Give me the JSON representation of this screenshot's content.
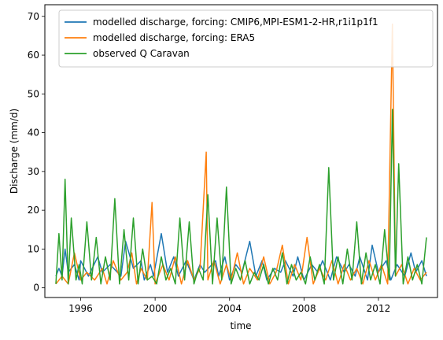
{
  "chart_data": {
    "type": "line",
    "title": "",
    "xlabel": "time",
    "ylabel": "Discharge (mm/d)",
    "xlim": [
      "1994-01-28",
      "2015-03-05"
    ],
    "ylim": [
      -2.5,
      73
    ],
    "x_ticks": [
      "1996",
      "2000",
      "2004",
      "2008",
      "2012"
    ],
    "y_ticks": [
      0,
      10,
      20,
      30,
      40,
      50,
      60,
      70
    ],
    "grid": false,
    "legend_position": "top-right",
    "series": [
      {
        "name": "modelled discharge, forcing: CMIP6,MPI-ESM1-2-HR,r1i1p1f1",
        "color": "#1f77b4",
        "x": [
          "1994-09",
          "1994-11",
          "1995-01",
          "1995-03",
          "1995-05",
          "1995-09",
          "1995-12",
          "1996-01",
          "1996-06",
          "1996-12",
          "1997-03",
          "1997-08",
          "1998-03",
          "1998-06",
          "1998-11",
          "1999-04",
          "1999-06",
          "1999-10",
          "1999-12",
          "2000-05",
          "2000-09",
          "2001-01",
          "2001-04",
          "2001-09",
          "2002-02",
          "2002-06",
          "2002-09",
          "2003-04",
          "2003-06",
          "2003-10",
          "2004-01",
          "2004-05",
          "2004-09",
          "2005-02",
          "2005-06",
          "2005-10",
          "2006-01",
          "2006-06",
          "2006-10",
          "2007-01",
          "2007-06",
          "2007-09",
          "2008-01",
          "2008-06",
          "2008-10",
          "2009-01",
          "2009-06",
          "2009-10",
          "2010-03",
          "2010-06",
          "2010-10",
          "2011-01",
          "2011-06",
          "2011-09",
          "2012-01",
          "2012-06",
          "2012-09",
          "2013-01",
          "2013-06",
          "2013-10",
          "2014-01",
          "2014-05",
          "2014-08"
        ],
        "y": [
          3,
          5,
          3,
          10,
          4,
          6,
          2,
          7,
          3,
          8,
          4,
          6,
          3,
          12,
          5,
          7,
          2,
          6,
          3,
          14,
          4,
          8,
          3,
          7,
          2,
          6,
          4,
          7,
          3,
          8,
          2,
          6,
          4,
          12,
          3,
          7,
          2,
          5,
          4,
          7,
          3,
          8,
          2,
          6,
          4,
          7,
          2,
          8,
          4,
          6,
          3,
          8,
          2,
          11,
          4,
          7,
          2,
          6,
          3,
          9,
          4,
          7,
          3
        ]
      },
      {
        "name": "modelled discharge, forcing: ERA5",
        "color": "#ff7f0e",
        "x": [
          "1994-09",
          "1995-01",
          "1995-05",
          "1995-09",
          "1996-01",
          "1996-05",
          "1996-10",
          "1997-03",
          "1997-06",
          "1997-10",
          "1998-03",
          "1998-07",
          "1998-10",
          "1999-01",
          "1999-04",
          "1999-08",
          "1999-11",
          "2000-01",
          "2000-06",
          "2000-10",
          "2001-02",
          "2001-06",
          "2001-10",
          "2002-02",
          "2002-06",
          "2002-10",
          "2002-11",
          "2003-03",
          "2003-07",
          "2003-11",
          "2004-02",
          "2004-06",
          "2004-10",
          "2005-02",
          "2005-07",
          "2005-11",
          "2006-03",
          "2006-07",
          "2006-11",
          "2007-03",
          "2007-07",
          "2007-11",
          "2008-03",
          "2008-07",
          "2008-11",
          "2009-03",
          "2009-07",
          "2009-11",
          "2010-03",
          "2010-07",
          "2010-11",
          "2011-03",
          "2011-07",
          "2011-11",
          "2012-03",
          "2012-07",
          "2012-10",
          "2012-12",
          "2013-04",
          "2013-08",
          "2013-12",
          "2014-04",
          "2014-08"
        ],
        "y": [
          1,
          3,
          1,
          9,
          2,
          4,
          2,
          5,
          1,
          7,
          2,
          4,
          9,
          1,
          5,
          2,
          22,
          1,
          6,
          2,
          8,
          1,
          7,
          2,
          5,
          35,
          2,
          7,
          1,
          6,
          2,
          9,
          1,
          5,
          2,
          8,
          1,
          4,
          11,
          1,
          6,
          2,
          13,
          1,
          5,
          2,
          7,
          1,
          6,
          2,
          5,
          1,
          7,
          2,
          6,
          1,
          68,
          3,
          6,
          1,
          5,
          2,
          4
        ]
      },
      {
        "name": "observed Q Caravan",
        "color": "#2ca02c",
        "x": [
          "1994-09",
          "1994-11",
          "1995-01",
          "1995-03",
          "1995-05",
          "1995-07",
          "1995-10",
          "1995-12",
          "1996-02",
          "1996-05",
          "1996-08",
          "1996-11",
          "1997-02",
          "1997-05",
          "1997-08",
          "1997-11",
          "1998-02",
          "1998-05",
          "1998-08",
          "1998-11",
          "1999-02",
          "1999-05",
          "1999-08",
          "1999-11",
          "2000-02",
          "2000-05",
          "2000-08",
          "2000-11",
          "2001-02",
          "2001-05",
          "2001-08",
          "2001-11",
          "2002-02",
          "2002-05",
          "2002-08",
          "2002-11",
          "2003-02",
          "2003-05",
          "2003-08",
          "2003-11",
          "2004-02",
          "2004-05",
          "2004-08",
          "2004-11",
          "2005-02",
          "2005-05",
          "2005-08",
          "2005-11",
          "2006-02",
          "2006-05",
          "2006-08",
          "2006-11",
          "2007-02",
          "2007-05",
          "2007-08",
          "2007-11",
          "2008-02",
          "2008-05",
          "2008-08",
          "2008-11",
          "2009-02",
          "2009-05",
          "2009-08",
          "2009-11",
          "2010-02",
          "2010-05",
          "2010-08",
          "2010-11",
          "2011-02",
          "2011-05",
          "2011-08",
          "2011-11",
          "2012-02",
          "2012-05",
          "2012-08",
          "2012-10",
          "2012-12",
          "2013-02",
          "2013-05",
          "2013-08",
          "2013-11",
          "2014-02",
          "2014-05",
          "2014-08"
        ],
        "y": [
          1,
          14,
          2,
          28,
          1,
          18,
          2,
          6,
          1,
          17,
          2,
          13,
          1,
          8,
          2,
          23,
          1,
          15,
          2,
          18,
          1,
          10,
          2,
          3,
          1,
          8,
          2,
          5,
          1,
          18,
          2,
          17,
          1,
          5,
          2,
          24,
          1,
          18,
          2,
          26,
          1,
          5,
          2,
          7,
          1,
          4,
          2,
          6,
          1,
          5,
          2,
          9,
          1,
          6,
          2,
          4,
          1,
          8,
          2,
          6,
          1,
          31,
          2,
          8,
          1,
          10,
          2,
          17,
          1,
          9,
          2,
          6,
          1,
          15,
          2,
          46,
          3,
          32,
          1,
          8,
          2,
          6,
          1,
          13
        ]
      }
    ]
  }
}
